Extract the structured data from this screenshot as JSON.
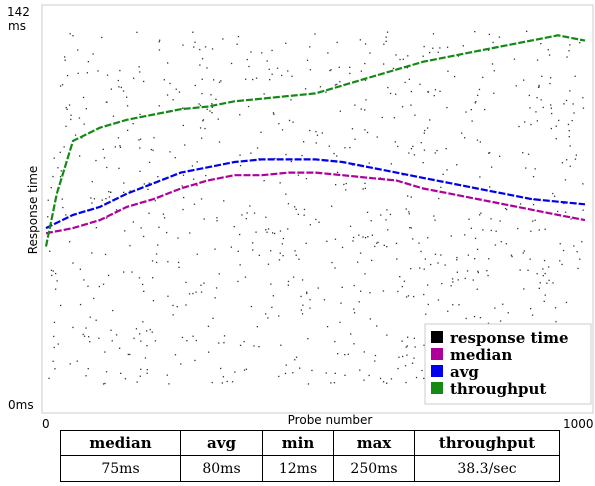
{
  "chart_data": {
    "type": "scatter",
    "title": "",
    "xlabel": "Probe number",
    "ylabel": "Response time",
    "xlim": [
      0,
      1000
    ],
    "ylim": [
      0,
      142
    ],
    "x_ticks": [
      "0",
      "1000"
    ],
    "y_ticks": {
      "top_value": "142",
      "top_unit": "ms",
      "bottom": "0ms"
    },
    "grid": false,
    "legend_position": "bottom-right",
    "legend": [
      {
        "label": "response time",
        "color": "#000000"
      },
      {
        "label": "median",
        "color": "#b0009a"
      },
      {
        "label": "avg",
        "color": "#0000ee"
      },
      {
        "label": "throughput",
        "color": "#138a13"
      }
    ],
    "series": [
      {
        "name": "median",
        "color": "#b0009a",
        "points": [
          [
            0,
            65
          ],
          [
            50,
            67
          ],
          [
            100,
            70
          ],
          [
            150,
            75
          ],
          [
            200,
            78
          ],
          [
            250,
            82
          ],
          [
            300,
            85
          ],
          [
            350,
            87
          ],
          [
            400,
            87
          ],
          [
            450,
            88
          ],
          [
            500,
            88
          ],
          [
            550,
            87
          ],
          [
            600,
            86
          ],
          [
            650,
            85
          ],
          [
            700,
            82
          ],
          [
            750,
            80
          ],
          [
            800,
            78
          ],
          [
            850,
            76
          ],
          [
            900,
            74
          ],
          [
            950,
            72
          ],
          [
            1000,
            70
          ]
        ]
      },
      {
        "name": "avg",
        "color": "#0000ee",
        "points": [
          [
            0,
            67
          ],
          [
            50,
            72
          ],
          [
            100,
            75
          ],
          [
            150,
            80
          ],
          [
            200,
            84
          ],
          [
            250,
            88
          ],
          [
            300,
            90
          ],
          [
            350,
            92
          ],
          [
            400,
            93
          ],
          [
            450,
            93
          ],
          [
            500,
            93
          ],
          [
            550,
            92
          ],
          [
            600,
            90
          ],
          [
            650,
            88
          ],
          [
            700,
            86
          ],
          [
            750,
            84
          ],
          [
            800,
            82
          ],
          [
            850,
            80
          ],
          [
            900,
            78
          ],
          [
            950,
            77
          ],
          [
            1000,
            76
          ]
        ]
      },
      {
        "name": "throughput",
        "color": "#138a13",
        "points": [
          [
            0,
            60
          ],
          [
            20,
            80
          ],
          [
            50,
            100
          ],
          [
            100,
            105
          ],
          [
            150,
            108
          ],
          [
            200,
            110
          ],
          [
            250,
            112
          ],
          [
            300,
            113
          ],
          [
            350,
            115
          ],
          [
            400,
            116
          ],
          [
            450,
            117
          ],
          [
            500,
            118
          ],
          [
            550,
            121
          ],
          [
            600,
            124
          ],
          [
            650,
            127
          ],
          [
            700,
            130
          ],
          [
            750,
            132
          ],
          [
            800,
            134
          ],
          [
            850,
            136
          ],
          [
            900,
            138
          ],
          [
            950,
            140
          ],
          [
            1000,
            138
          ]
        ]
      }
    ]
  },
  "stats_table": {
    "headers": [
      "median",
      "avg",
      "min",
      "max",
      "throughput"
    ],
    "values": [
      "75ms",
      "80ms",
      "12ms",
      "250ms",
      "38.3/sec"
    ]
  }
}
